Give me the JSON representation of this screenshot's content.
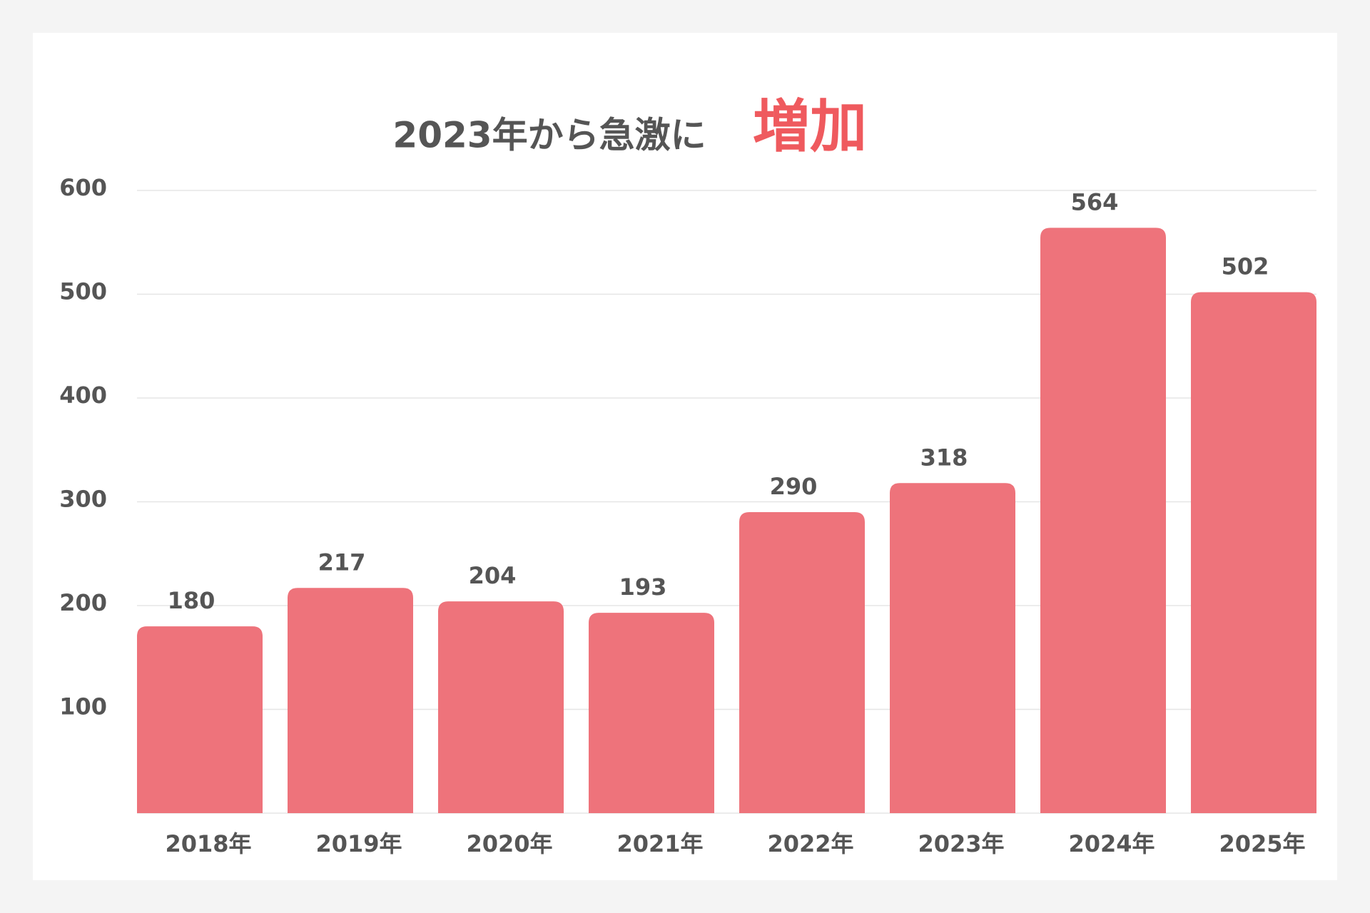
{
  "chart_data": {
    "type": "bar",
    "title": "2023年から急激に",
    "title_highlight": "増加",
    "categories": [
      "2018年",
      "2019年",
      "2020年",
      "2021年",
      "2022年",
      "2023年",
      "2024年",
      "2025年"
    ],
    "values": [
      180,
      217,
      204,
      193,
      290,
      318,
      564,
      502
    ],
    "color": "#ee737b",
    "highlight_color": "#ef5a5e",
    "ylim": [
      0,
      600
    ],
    "yticks": [
      100,
      200,
      300,
      400,
      500,
      600
    ],
    "grid": true
  }
}
